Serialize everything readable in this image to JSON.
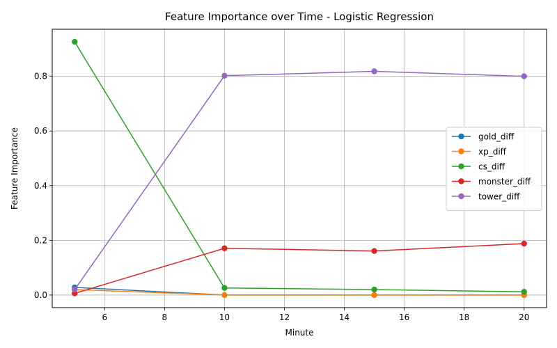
{
  "chart_data": {
    "type": "line",
    "title": "Feature Importance over Time - Logistic Regression",
    "xlabel": "Minute",
    "ylabel": "Feature Importance",
    "x": [
      5,
      10,
      15,
      20
    ],
    "xlim": [
      4.25,
      20.75
    ],
    "ylim": [
      -0.046,
      0.972
    ],
    "xticks": [
      6,
      8,
      10,
      12,
      14,
      16,
      18,
      20
    ],
    "yticks": [
      0.0,
      0.2,
      0.4,
      0.6,
      0.8
    ],
    "grid": true,
    "legend_position": "center-right",
    "series": [
      {
        "name": "gold_diff",
        "color": "#1f77b4",
        "values": [
          0.028,
          0.0,
          0.0,
          0.0
        ]
      },
      {
        "name": "xp_diff",
        "color": "#ff7f0e",
        "values": [
          0.02,
          0.0,
          0.0,
          0.0
        ]
      },
      {
        "name": "cs_diff",
        "color": "#2ca02c",
        "values": [
          0.926,
          0.026,
          0.02,
          0.012
        ]
      },
      {
        "name": "monster_diff",
        "color": "#d62728",
        "values": [
          0.006,
          0.171,
          0.161,
          0.188
        ]
      },
      {
        "name": "tower_diff",
        "color": "#9467bd",
        "values": [
          0.02,
          0.802,
          0.818,
          0.8
        ]
      }
    ]
  }
}
